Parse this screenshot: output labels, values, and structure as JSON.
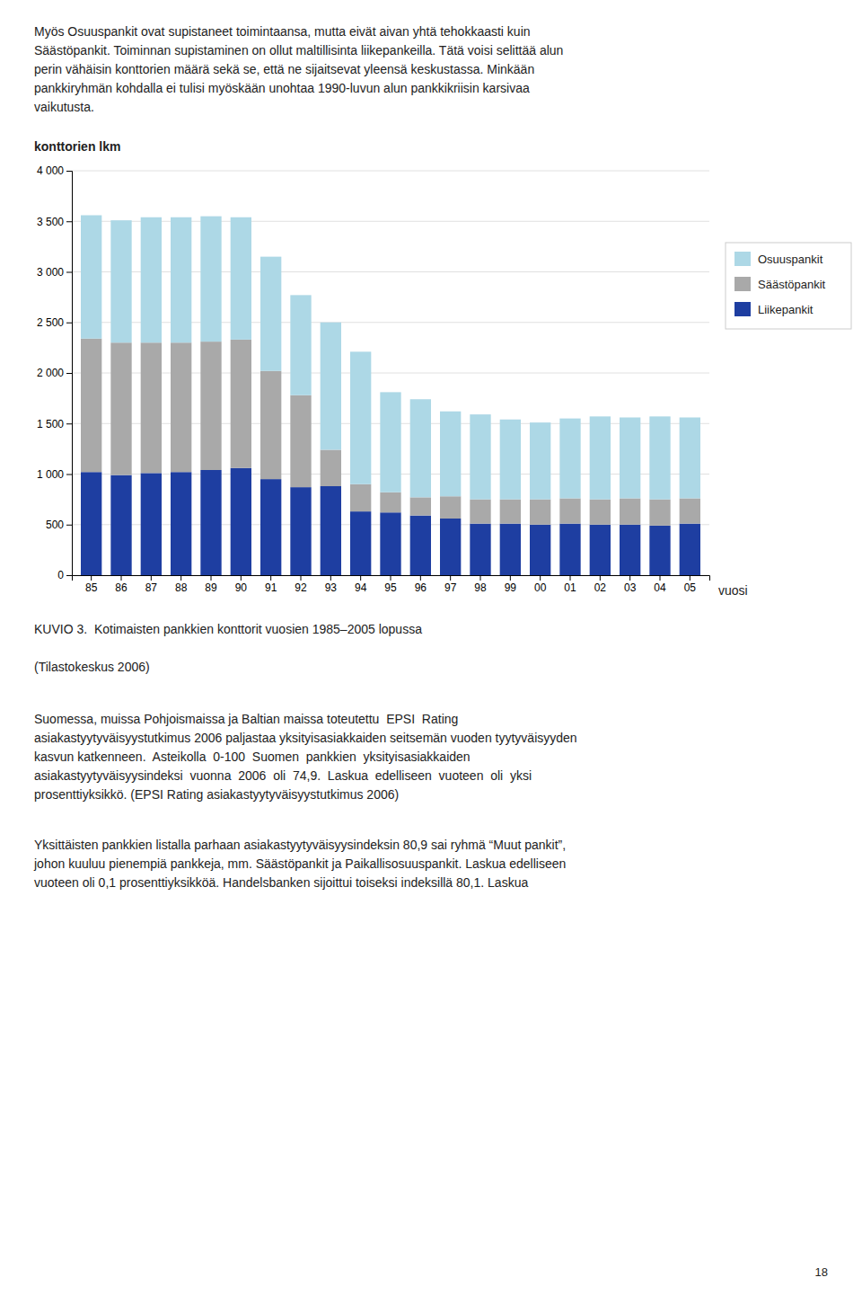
{
  "chart_data": {
    "type": "bar",
    "stacked": true,
    "title": "KUVIO 3.  Kotimaisten pankkien konttorit vuosien 1985–2005 lopussa",
    "subtitle": "(Tilastokeskus 2006)",
    "ylabel": "konttorien lkm",
    "xlabel": "vuosi",
    "categories": [
      "85",
      "86",
      "87",
      "88",
      "89",
      "90",
      "91",
      "92",
      "93",
      "94",
      "95",
      "96",
      "97",
      "98",
      "99",
      "00",
      "01",
      "02",
      "03",
      "04",
      "05"
    ],
    "series": [
      {
        "name": "Liikepankit",
        "color": "#1E3EA1",
        "values": [
          1020,
          990,
          1010,
          1020,
          1040,
          1060,
          950,
          870,
          880,
          630,
          620,
          590,
          560,
          510,
          510,
          500,
          510,
          500,
          500,
          490,
          510
        ]
      },
      {
        "name": "Säästöpankit",
        "color": "#A9A9A9",
        "values": [
          1320,
          1310,
          1290,
          1280,
          1270,
          1270,
          1070,
          910,
          360,
          270,
          200,
          180,
          220,
          240,
          240,
          250,
          250,
          250,
          260,
          260,
          250
        ]
      },
      {
        "name": "Osuuspankit",
        "color": "#ADD8E6",
        "values": [
          1220,
          1210,
          1240,
          1240,
          1240,
          1210,
          1130,
          990,
          1260,
          1310,
          990,
          970,
          840,
          840,
          790,
          760,
          790,
          820,
          800,
          820,
          800
        ]
      }
    ],
    "ylim": [
      0,
      4000
    ],
    "yticks": [
      0,
      500,
      {
        "value": 1000,
        "label": "1 000"
      },
      {
        "value": 1500,
        "label": "1 500"
      },
      {
        "value": 2000,
        "label": "2 000"
      },
      {
        "value": 2500,
        "label": "2 500"
      },
      {
        "value": 3000,
        "label": "3 000"
      },
      {
        "value": 3500,
        "label": "3 500"
      },
      {
        "value": 4000,
        "label": "4 000"
      }
    ],
    "grid": true,
    "legend": "right"
  },
  "page": {
    "top_text": [
      "Myös Osuuspankit ovat supistaneet toimintaansa, mutta eivät aivan yhtä tehokkaasti kuin",
      "Säästöpankit. Toiminnan supistaminen on ollut maltillisinta liikepankeilla. Tätä voisi selittää alun",
      "perin vähäisin konttorien määrä sekä se, että ne sijaitsevat yleensä keskustassa. Minkään",
      "pankkiryhmän kohdalla ei tulisi myöskään unohtaa 1990-luvun alun pankkikriisin karsivaa",
      "vaikutusta."
    ],
    "body1": [
      "Suomessa, muissa Pohjoismaissa ja Baltian maissa toteutettu  EPSI  Rating",
      "asiakastyytyväisyystutkimus 2006 paljastaa yksityisasiakkaiden seitsemän vuoden tyytyväisyyden",
      "kasvun katkenneen.  Asteikolla  0-100  Suomen  pankkien  yksityisasiakkaiden",
      "asiakastyytyväisyysindeksi  vuonna  2006  oli  74,9.  Laskua  edelliseen  vuoteen  oli  yksi",
      "prosenttiyksikkö. (EPSI Rating asiakastyytyväisyystutkimus 2006)"
    ],
    "body2": [
      "Yksittäisten pankkien listalla parhaan asiakastyytyväisyysindeksin 80,9 sai ryhmä “Muut pankit”,",
      "johon kuuluu pienempiä pankkeja, mm. Säästöpankit ja Paikallisosuuspankit. Laskua edelliseen",
      "vuoteen oli 0,1 prosenttiyksikköä. Handelsbanken sijoittui toiseksi indeksillä 80,1. Laskua"
    ],
    "page_number": "18"
  }
}
